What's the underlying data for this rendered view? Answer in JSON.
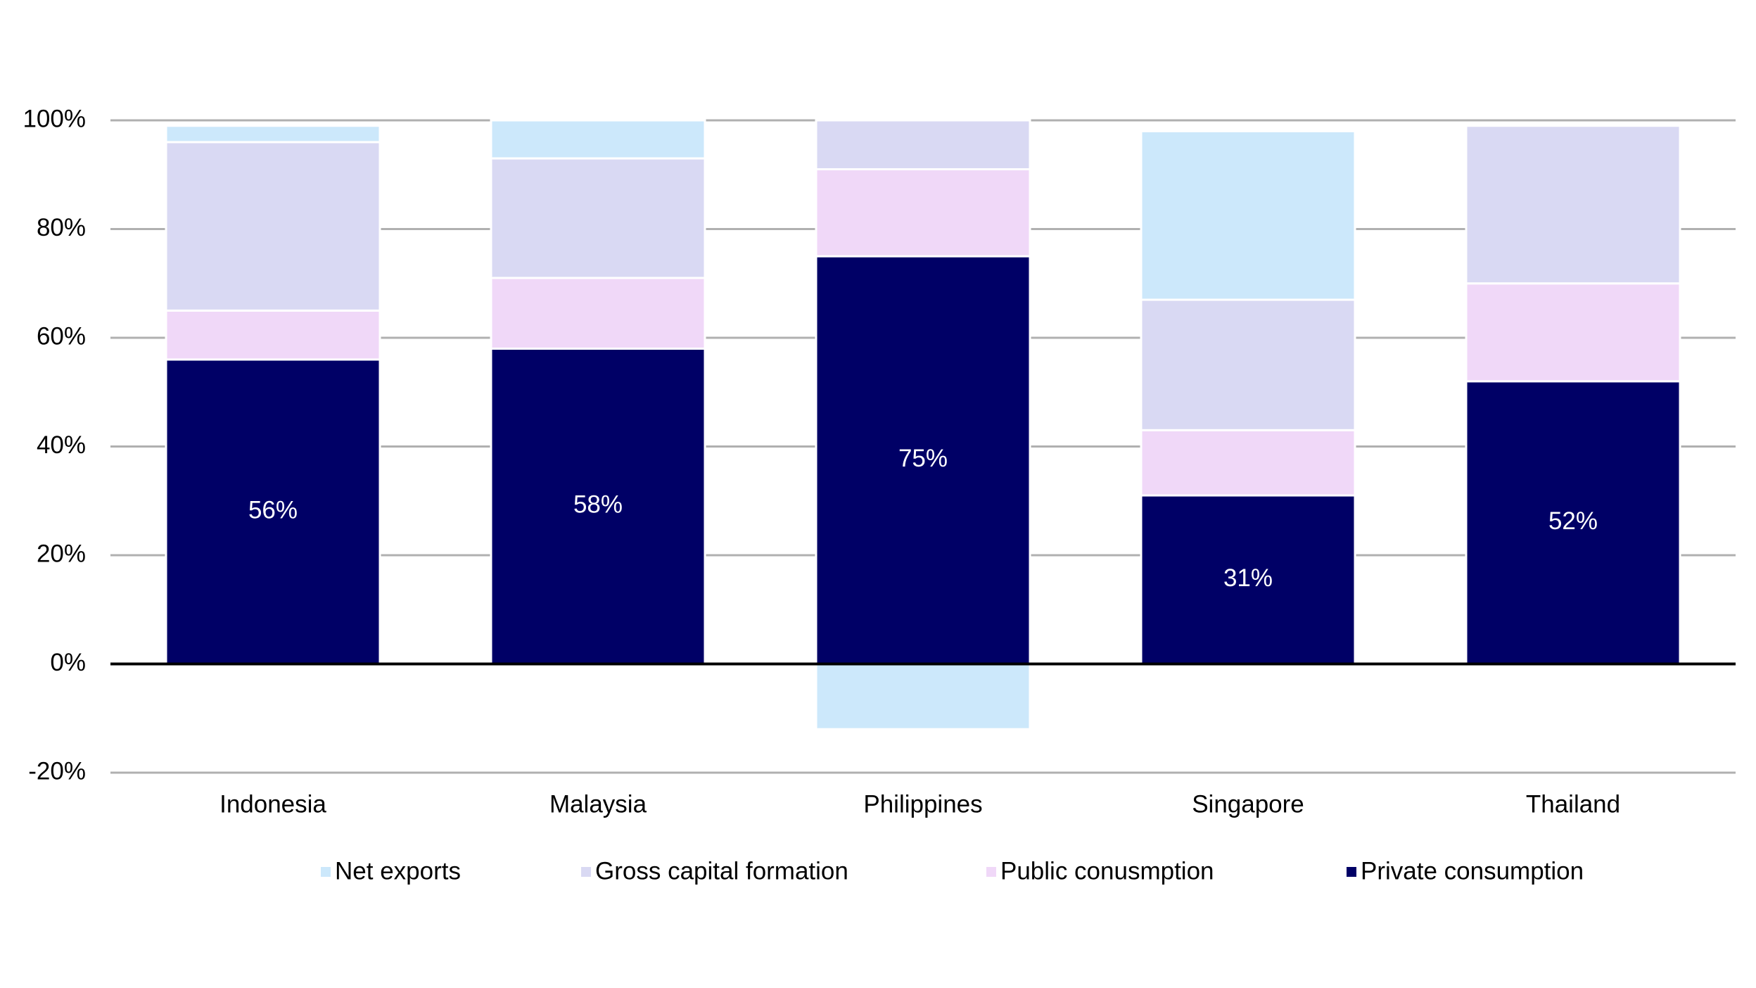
{
  "chart_data": {
    "type": "stacked_bar",
    "categories": [
      "Indonesia",
      "Malaysia",
      "Philippines",
      "Singapore",
      "Thailand"
    ],
    "series": [
      {
        "name": "Net exports",
        "color": "#cce8fb",
        "values": [
          3,
          7,
          -12,
          31,
          0
        ]
      },
      {
        "name": "Gross capital formation",
        "color": "#d9d9f3",
        "values": [
          31,
          22,
          9,
          24,
          29
        ]
      },
      {
        "name": "Public conusmption",
        "color": "#f0d8f8",
        "values": [
          9,
          13,
          16,
          12,
          18
        ]
      },
      {
        "name": "Private consumption",
        "color": "#000066",
        "values": [
          56,
          58,
          75,
          31,
          52
        ],
        "value_labels": [
          "56%",
          "58%",
          "75%",
          "31%",
          "52%"
        ]
      }
    ],
    "ylim": [
      -20,
      100
    ],
    "yticks": [
      {
        "value": -20,
        "label": "-20%"
      },
      {
        "value": 0,
        "label": "0%"
      },
      {
        "value": 20,
        "label": "20%"
      },
      {
        "value": 40,
        "label": "40%"
      },
      {
        "value": 60,
        "label": "60%"
      },
      {
        "value": 80,
        "label": "80%"
      },
      {
        "value": 100,
        "label": "100%"
      }
    ],
    "grid": true,
    "legend": "bottom"
  }
}
